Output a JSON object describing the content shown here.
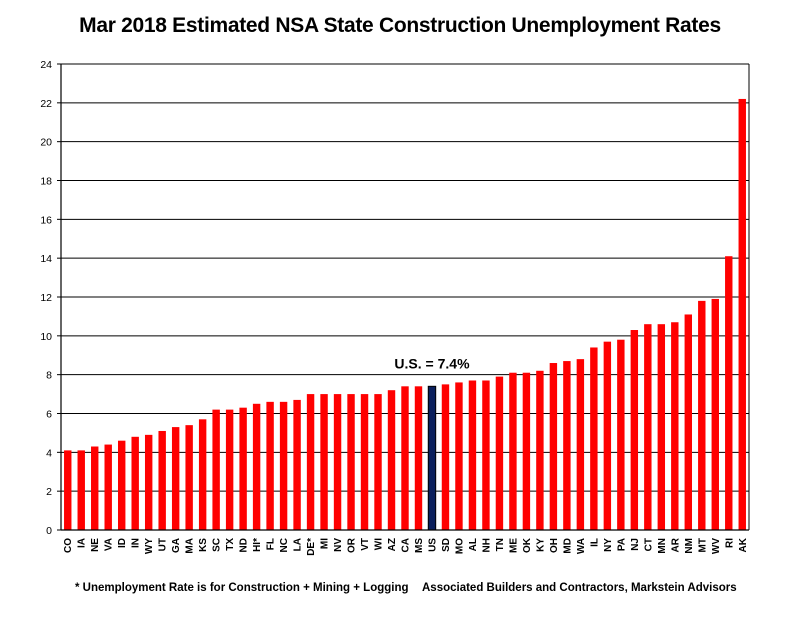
{
  "chart_data": {
    "type": "bar",
    "title": "Mar 2018 Estimated NSA State Construction Unemployment Rates",
    "xlabel": "",
    "ylabel": "",
    "ylim": [
      0,
      24
    ],
    "yticks": [
      0,
      2,
      4,
      6,
      8,
      10,
      12,
      14,
      16,
      18,
      20,
      22,
      24
    ],
    "grid": true,
    "categories": [
      "CO",
      "IA",
      "NE",
      "VA",
      "ID",
      "IN",
      "WY",
      "UT",
      "GA",
      "MA",
      "KS",
      "SC",
      "TX",
      "ND",
      "HI*",
      "FL",
      "NC",
      "LA",
      "DE*",
      "MI",
      "NV",
      "OR",
      "VT",
      "WI",
      "AZ",
      "CA",
      "MS",
      "US",
      "SD",
      "MO",
      "AL",
      "NH",
      "TN",
      "ME",
      "OK",
      "KY",
      "OH",
      "MD",
      "WA",
      "IL",
      "NY",
      "PA",
      "NJ",
      "CT",
      "MN",
      "AR",
      "NM",
      "MT",
      "WV",
      "RI",
      "AK"
    ],
    "values": [
      4.1,
      4.1,
      4.3,
      4.4,
      4.6,
      4.8,
      4.9,
      5.1,
      5.3,
      5.4,
      5.7,
      6.2,
      6.2,
      6.3,
      6.5,
      6.6,
      6.6,
      6.7,
      7.0,
      7.0,
      7.0,
      7.0,
      7.0,
      7.0,
      7.2,
      7.4,
      7.4,
      7.4,
      7.5,
      7.6,
      7.7,
      7.7,
      7.9,
      8.1,
      8.1,
      8.2,
      8.6,
      8.7,
      8.8,
      9.4,
      9.7,
      9.8,
      10.3,
      10.6,
      10.6,
      10.7,
      11.1,
      11.8,
      11.9,
      14.1,
      22.2
    ],
    "colors": {
      "bar": "#ff0000",
      "highlight": "#0a1f5c",
      "outline": "#000000"
    },
    "highlight_category": "US",
    "annotation": "U.S. = 7.4%"
  },
  "footnote": "* Unemployment Rate is for Construction + Mining + Logging",
  "source": "Associated Builders and Contractors, Markstein Advisors"
}
